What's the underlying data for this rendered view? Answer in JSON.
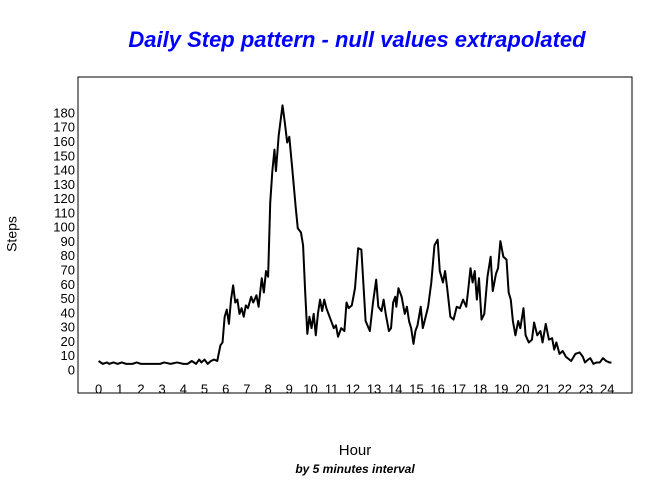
{
  "chart_data": {
    "type": "line",
    "title": "Daily Step pattern - null values extrapolated",
    "subtitle": "by 5 minutes interval",
    "x_label": "Hour",
    "y_label": "Steps",
    "x": [
      0,
      0.2,
      0.4,
      0.5,
      0.7,
      0.9,
      1.1,
      1.3,
      1.6,
      1.8,
      2,
      2.3,
      2.6,
      2.9,
      3.1,
      3.4,
      3.7,
      4,
      4.2,
      4.4,
      4.6,
      4.75,
      4.85,
      5,
      5.15,
      5.3,
      5.45,
      5.6,
      5.75,
      5.85,
      5.95,
      6.05,
      6.15,
      6.25,
      6.35,
      6.45,
      6.55,
      6.65,
      6.75,
      6.85,
      6.95,
      7.05,
      7.2,
      7.3,
      7.45,
      7.55,
      7.7,
      7.8,
      7.9,
      8.0,
      8.1,
      8.2,
      8.3,
      8.37,
      8.5,
      8.68,
      8.78,
      8.9,
      9.0,
      9.15,
      9.3,
      9.4,
      9.55,
      9.65,
      9.75,
      9.85,
      9.95,
      10.05,
      10.15,
      10.25,
      10.35,
      10.45,
      10.55,
      10.65,
      10.75,
      10.9,
      11.0,
      11.1,
      11.2,
      11.3,
      11.45,
      11.6,
      11.7,
      11.8,
      11.95,
      12.1,
      12.25,
      12.4,
      12.5,
      12.6,
      12.8,
      12.95,
      13.1,
      13.2,
      13.35,
      13.45,
      13.55,
      13.7,
      13.8,
      13.9,
      14.0,
      14.05,
      14.15,
      14.3,
      14.45,
      14.55,
      14.65,
      14.75,
      14.86,
      14.95,
      15.05,
      15.2,
      15.3,
      15.4,
      15.55,
      15.7,
      15.85,
      16.0,
      16.1,
      16.25,
      16.35,
      16.45,
      16.6,
      16.75,
      16.9,
      17.05,
      17.2,
      17.35,
      17.45,
      17.55,
      17.65,
      17.75,
      17.85,
      17.95,
      18.07,
      18.2,
      18.35,
      18.5,
      18.6,
      18.75,
      18.85,
      18.96,
      19.1,
      19.25,
      19.35,
      19.45,
      19.55,
      19.67,
      19.8,
      19.9,
      20.05,
      20.15,
      20.3,
      20.45,
      20.55,
      20.7,
      20.85,
      20.95,
      21.1,
      21.25,
      21.4,
      21.5,
      21.6,
      21.75,
      21.9,
      22.05,
      22.3,
      22.5,
      22.7,
      22.85,
      22.95,
      23.1,
      23.2,
      23.35,
      23.5,
      23.65,
      23.8,
      23.95,
      24.1,
      24.2
    ],
    "series": [
      {
        "name": "Steps",
        "color": "#000000",
        "values": [
          7,
          5,
          6,
          5,
          6,
          5,
          6,
          5,
          5,
          6,
          5,
          5,
          5,
          5,
          6,
          5,
          6,
          5,
          5,
          7,
          5,
          8,
          6,
          8,
          5,
          7,
          8,
          7,
          18,
          20,
          38,
          43,
          33,
          50,
          60,
          48,
          50,
          40,
          44,
          38,
          46,
          44,
          52,
          48,
          53,
          45,
          65,
          55,
          70,
          66,
          118,
          140,
          155,
          140,
          165,
          186,
          175,
          160,
          164,
          140,
          115,
          100,
          97,
          88,
          55,
          26,
          38,
          30,
          40,
          25,
          40,
          50,
          42,
          50,
          44,
          38,
          34,
          30,
          32,
          24,
          30,
          28,
          48,
          44,
          46,
          58,
          86,
          85,
          60,
          35,
          28,
          48,
          64,
          45,
          42,
          50,
          40,
          28,
          30,
          48,
          52,
          45,
          58,
          52,
          40,
          45,
          35,
          30,
          19,
          28,
          32,
          45,
          30,
          36,
          45,
          62,
          88,
          92,
          70,
          62,
          70,
          58,
          38,
          36,
          45,
          44,
          50,
          45,
          58,
          72,
          62,
          70,
          50,
          65,
          36,
          40,
          66,
          80,
          56,
          68,
          72,
          91,
          80,
          78,
          55,
          50,
          35,
          25,
          35,
          30,
          44,
          25,
          20,
          22,
          34,
          25,
          28,
          20,
          33,
          22,
          23,
          15,
          20,
          12,
          14,
          10,
          7,
          12,
          13,
          10,
          6,
          8,
          9,
          5,
          6,
          6,
          9,
          7,
          6,
          6
        ]
      }
    ],
    "xlim": [
      -0.97,
      25.17
    ],
    "ylim": [
      -15.4,
      205.9
    ],
    "xticks": [
      0,
      1,
      2,
      3,
      4,
      5,
      6,
      7,
      8,
      9,
      10,
      11,
      12,
      13,
      14,
      15,
      16,
      17,
      18,
      19,
      20,
      21,
      22,
      23,
      24
    ],
    "yticks": [
      0,
      10,
      20,
      30,
      40,
      50,
      60,
      70,
      80,
      90,
      100,
      110,
      120,
      130,
      140,
      150,
      160,
      170,
      180
    ]
  }
}
